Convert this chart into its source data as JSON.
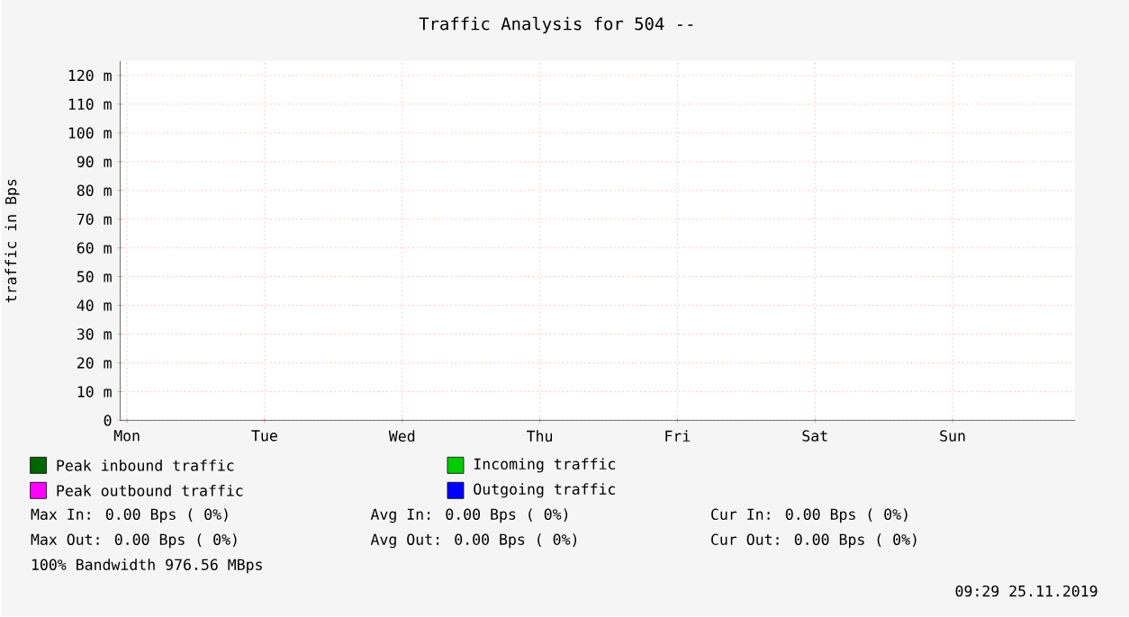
{
  "chart_data": {
    "type": "line",
    "title": "Traffic Analysis for 504 --",
    "ylabel": "traffic in Bps",
    "categories": [
      "Mon",
      "Tue",
      "Wed",
      "Thu",
      "Fri",
      "Sat",
      "Sun"
    ],
    "series": [
      {
        "name": "Peak inbound traffic",
        "color": "#006600",
        "values": [
          null,
          null,
          null,
          null,
          null,
          null,
          null
        ]
      },
      {
        "name": "Incoming traffic",
        "color": "#00cc00",
        "values": [
          null,
          null,
          null,
          null,
          null,
          null,
          null
        ]
      },
      {
        "name": "Peak outbound traffic",
        "color": "#ff00ff",
        "values": [
          null,
          null,
          null,
          null,
          null,
          null,
          null
        ]
      },
      {
        "name": "Outgoing traffic",
        "color": "#0000ff",
        "values": [
          null,
          null,
          null,
          null,
          null,
          null,
          null
        ]
      }
    ],
    "ylim": [
      0,
      125
    ],
    "yticks": [
      0,
      {
        "value": 10,
        "label": "10 m"
      },
      {
        "value": 20,
        "label": "20 m"
      },
      {
        "value": 30,
        "label": "30 m"
      },
      {
        "value": 40,
        "label": "40 m"
      },
      {
        "value": 50,
        "label": "50 m"
      },
      {
        "value": 60,
        "label": "60 m"
      },
      {
        "value": 70,
        "label": "70 m"
      },
      {
        "value": 80,
        "label": "80 m"
      },
      {
        "value": 90,
        "label": "90 m"
      },
      {
        "value": 100,
        "label": "100 m"
      },
      {
        "value": 110,
        "label": "110 m"
      },
      {
        "value": 120,
        "label": "120 m"
      }
    ],
    "grid": true,
    "legend": "bottom",
    "annotations": [
      "Max In:   0.00  Bps ( 0%)",
      "Avg In:   0.00  Bps ( 0%)",
      "Cur In:   0.00  Bps ( 0%)",
      "Max Out:  0.00  Bps ( 0%)",
      "Avg Out:   0.00  Bps ( 0%)",
      "Cur Out:   0.00  Bps ( 0%)",
      "100% Bandwidth 976.56 MBps",
      "09:29 25.11.2019"
    ]
  }
}
